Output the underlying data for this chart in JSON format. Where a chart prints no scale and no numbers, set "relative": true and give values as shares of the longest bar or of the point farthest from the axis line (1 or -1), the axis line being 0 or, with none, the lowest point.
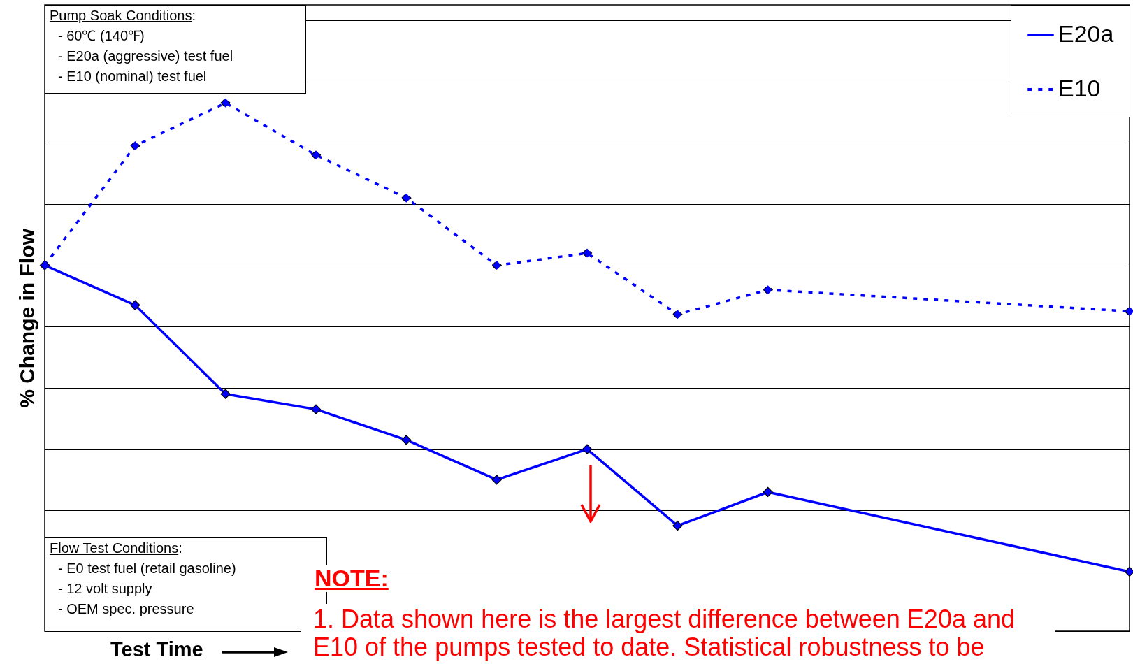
{
  "chart_data": {
    "type": "line",
    "ylabel": "% Change in Flow",
    "xlabel": "Test Time",
    "relative": true,
    "categories": [
      null,
      null,
      null,
      null,
      null,
      null,
      null,
      null,
      null,
      null,
      null,
      null,
      null
    ],
    "grid": "y",
    "marker": "diamond",
    "legend": "top right",
    "series": [
      {
        "name": "E20a",
        "color": "#0000ff",
        "line_style": "solid",
        "values": [
          0,
          -0.13,
          -0.42,
          -0.47,
          -0.57,
          -0.7,
          -0.6,
          -0.85,
          -0.74,
          null,
          null,
          null,
          -1
        ]
      },
      {
        "name": "E10",
        "color": "#0000ff",
        "line_style": "dotted",
        "values": [
          0,
          0.39,
          0.53,
          0.36,
          0.22,
          0,
          0.04,
          -0.16,
          -0.08,
          null,
          null,
          null,
          -0.15
        ]
      }
    ],
    "annotations": [
      "Pump Soak Conditions:\n- 60℃ (140℉)\n- E20a (aggressive) test fuel\n- E10 (nominal) test fuel",
      "Flow Test Conditions:\n- E0 test fuel (retail gasoline)\n- 12 volt supply\n- OEM spec. pressure",
      "NOTE:",
      "1. Data shown here is the largest difference between E20a and E10 of the pumps tested to date. Statistical robustness to be"
    ]
  }
}
